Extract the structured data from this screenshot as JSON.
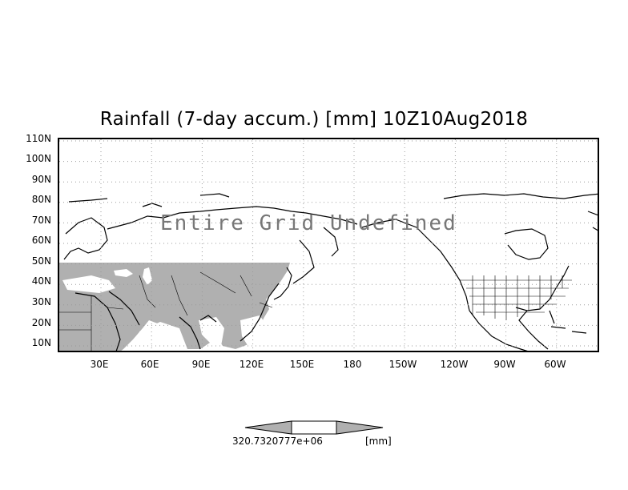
{
  "title": "Rainfall (7-day accum.) [mm] 10Z10Aug2018",
  "overlay_text": "Entire Grid Undefined",
  "lat_labels": [
    "110N",
    "100N",
    "90N",
    "80N",
    "70N",
    "60N",
    "50N",
    "40N",
    "30N",
    "20N",
    "10N"
  ],
  "lon_labels": [
    "30E",
    "60E",
    "90E",
    "120E",
    "150E",
    "180",
    "150W",
    "120W",
    "90W",
    "60W"
  ],
  "colorbar": {
    "value_text": "320.7320777e+06",
    "unit_text": "[mm]"
  },
  "colors": {
    "land_fill": "#b0b0b0",
    "grid": "#999999",
    "frame": "#000000"
  }
}
